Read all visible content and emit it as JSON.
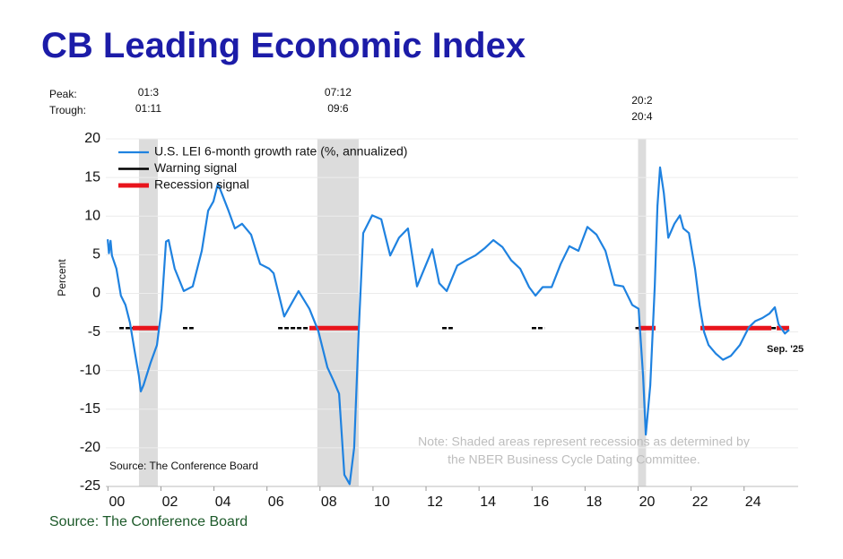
{
  "chart_data": {
    "type": "line",
    "title": "CB Leading Economic Index",
    "y_label": "Percent",
    "peak_label": "Peak:",
    "trough_label": "Trough:",
    "note": [
      "Note: Shaded areas represent recessions as determined by",
      "the NBER Business Cycle Dating Committee."
    ],
    "inner_source": "Source: The Conference Board",
    "source": "Source: The Conference Board",
    "end_label": "Sep. '25",
    "xlim": [
      1999.92,
      2026.04
    ],
    "ylim": [
      -25,
      20
    ],
    "yticks": [
      20,
      15,
      10,
      5,
      0,
      -5,
      -10,
      -15,
      -20,
      -25
    ],
    "xticks": [
      {
        "value": 2000,
        "label": "00"
      },
      {
        "value": 2002,
        "label": "02"
      },
      {
        "value": 2004,
        "label": "04"
      },
      {
        "value": 2006,
        "label": "06"
      },
      {
        "value": 2008,
        "label": "08"
      },
      {
        "value": 2010,
        "label": "10"
      },
      {
        "value": 2012,
        "label": "12"
      },
      {
        "value": 2014,
        "label": "14"
      },
      {
        "value": 2016,
        "label": "16"
      },
      {
        "value": 2018,
        "label": "18"
      },
      {
        "value": 2020,
        "label": "20"
      },
      {
        "value": 2022,
        "label": "22"
      },
      {
        "value": 2024,
        "label": "24"
      }
    ],
    "grid": true,
    "recessions": [
      {
        "peak": "01:3",
        "trough": "01:11",
        "start": 2001.17,
        "end": 2001.88
      },
      {
        "peak": "07:12",
        "trough": "09:6",
        "start": 2007.9,
        "end": 2009.46
      },
      {
        "peak": "20:2",
        "trough": "20:4",
        "start": 2020.0,
        "end": 2020.3
      }
    ],
    "shade_color": "#dcdcdc",
    "x": [
      1999.99,
      2000.04,
      2000.1,
      2000.15,
      2000.32,
      2000.49,
      2000.66,
      2000.83,
      2001.0,
      2001.17,
      2001.24,
      2001.34,
      2001.61,
      2001.85,
      2002.02,
      2002.19,
      2002.29,
      2002.52,
      2002.86,
      2003.2,
      2003.54,
      2003.78,
      2003.98,
      2004.15,
      2004.22,
      2004.55,
      2004.79,
      2005.06,
      2005.4,
      2005.74,
      2006.08,
      2006.25,
      2006.65,
      2007.19,
      2007.6,
      2007.94,
      2008.28,
      2008.51,
      2008.72,
      2008.92,
      2009.12,
      2009.29,
      2009.46,
      2009.63,
      2009.97,
      2010.31,
      2010.65,
      2010.98,
      2011.32,
      2011.66,
      2012.24,
      2012.5,
      2012.78,
      2013.18,
      2013.52,
      2013.86,
      2014.2,
      2014.54,
      2014.88,
      2015.21,
      2015.55,
      2015.89,
      2016.13,
      2016.4,
      2016.74,
      2017.08,
      2017.41,
      2017.75,
      2018.09,
      2018.43,
      2018.77,
      2019.11,
      2019.44,
      2019.78,
      2020.02,
      2020.19,
      2020.29,
      2020.46,
      2020.63,
      2020.73,
      2020.83,
      2020.97,
      2021.14,
      2021.37,
      2021.58,
      2021.71,
      2021.92,
      2022.15,
      2022.32,
      2022.49,
      2022.66,
      2022.93,
      2023.2,
      2023.5,
      2023.84,
      2024.18,
      2024.42,
      2024.69,
      2024.96,
      2025.16,
      2025.3,
      2025.54,
      2025.7
    ],
    "series": [
      {
        "name": "U.S. LEI 6-month growth rate (%, annualized)",
        "color": "#1f82e0",
        "values": [
          7,
          5.2,
          6.8,
          4.9,
          3.2,
          -0.3,
          -1.5,
          -3.8,
          -7.3,
          -10.7,
          -12.7,
          -11.9,
          -9,
          -6.7,
          -2,
          6.7,
          6.9,
          3.2,
          0.3,
          0.9,
          5.5,
          10.7,
          11.9,
          14.2,
          13.6,
          10.7,
          8.4,
          9,
          7.6,
          3.8,
          3.2,
          2.6,
          -3,
          0.3,
          -2,
          -4.9,
          -9.6,
          -11.3,
          -13,
          -23.5,
          -24.7,
          -20,
          -4.9,
          7.8,
          10.1,
          9.6,
          4.9,
          7.2,
          8.4,
          0.9,
          5.7,
          1.3,
          0.3,
          3.6,
          4.3,
          4.9,
          5.8,
          6.9,
          6,
          4.3,
          3.2,
          0.8,
          -0.3,
          0.8,
          0.8,
          3.8,
          6.1,
          5.5,
          8.6,
          7.6,
          5.5,
          1.1,
          0.9,
          -1.5,
          -2,
          -10.7,
          -18.3,
          -11.9,
          0.9,
          11.3,
          16.3,
          13,
          7.2,
          9,
          10.1,
          8.4,
          7.8,
          3.2,
          -1.5,
          -5,
          -6.7,
          -7.8,
          -8.6,
          -8.1,
          -6.7,
          -4.4,
          -3.6,
          -3.2,
          -2.6,
          -1.8,
          -4,
          -5.2,
          -4.7
        ]
      }
    ],
    "signals": [
      {
        "name": "Warning signal",
        "color": "#000000",
        "level": -4.5,
        "periods": [
          [
            2000.43,
            2000.93
          ],
          [
            2002.83,
            2003.23
          ],
          [
            2006.42,
            2007.6
          ],
          [
            2012.61,
            2013.01
          ],
          [
            2015.99,
            2016.47
          ],
          [
            2019.9,
            2020.02
          ],
          [
            2025.03,
            2025.23
          ]
        ]
      },
      {
        "name": "Recession signal",
        "color": "#e8141c",
        "level": -4.5,
        "periods": [
          [
            2000.93,
            2001.95
          ],
          [
            2007.6,
            2009.46
          ],
          [
            2020.02,
            2020.66
          ],
          [
            2022.35,
            2025.03
          ],
          [
            2025.23,
            2025.7
          ]
        ]
      }
    ]
  }
}
